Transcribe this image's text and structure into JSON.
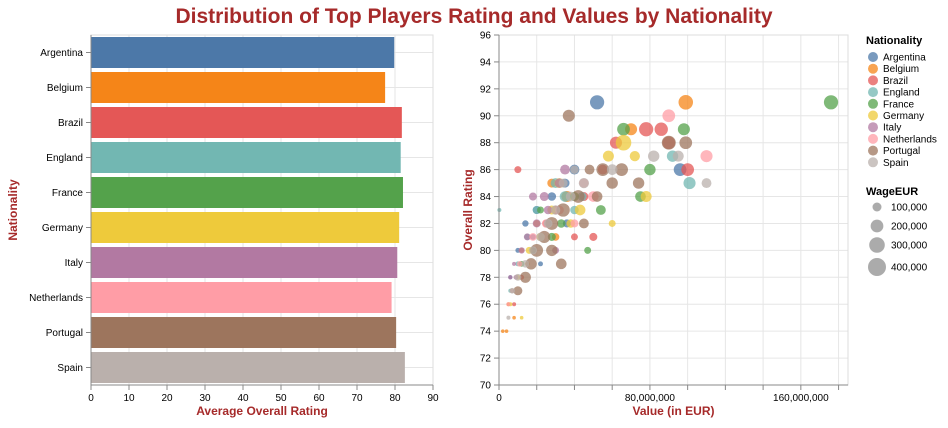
{
  "title": "Distribution of Top Players Rating and Values by Nationality",
  "title_color": "#a62a2a",
  "axis_title_color": "#a62a2a",
  "legend": {
    "color_title": "Nationality",
    "size_title": "WageEUR",
    "size_labels": [
      "100,000",
      "200,000",
      "300,000",
      "400,000"
    ],
    "size_values": [
      100000,
      200000,
      300000,
      400000
    ],
    "position": "right"
  },
  "chart_data": [
    {
      "type": "bar",
      "orientation": "horizontal",
      "xlabel": "Average Overall Rating",
      "ylabel": "Nationality",
      "xlim": [
        0,
        90
      ],
      "xticks": [
        "0",
        "10",
        "20",
        "30",
        "40",
        "50",
        "60",
        "70",
        "80",
        "90"
      ],
      "grid": true,
      "categories": [
        "Argentina",
        "Belgium",
        "Brazil",
        "England",
        "France",
        "Germany",
        "Italy",
        "Netherlands",
        "Portugal",
        "Spain"
      ],
      "values": [
        79.8,
        77.4,
        81.8,
        81.5,
        82.1,
        81.1,
        80.6,
        79.1,
        80.3,
        82.6
      ],
      "colors": [
        "#4c78a8",
        "#f58518",
        "#e45756",
        "#72b7b2",
        "#54a24b",
        "#eeca3b",
        "#b279a2",
        "#ff9da6",
        "#9d755d",
        "#bab0ac"
      ]
    },
    {
      "type": "scatter",
      "xlabel": "Value (in EUR)",
      "ylabel": "Overall Rating",
      "xlim": [
        0,
        185000000
      ],
      "ylim": [
        70,
        96
      ],
      "xticks": [
        "0",
        "80,000,000",
        "160,000,000"
      ],
      "yticks": [
        "70",
        "72",
        "74",
        "76",
        "78",
        "80",
        "82",
        "84",
        "86",
        "88",
        "90",
        "92",
        "94",
        "96"
      ],
      "grid": true,
      "series": [
        {
          "name": "Argentina",
          "color": "#4c78a8",
          "points": [
            [
              52000000,
              91,
              250000
            ],
            [
              96000000,
              86,
              200000
            ],
            [
              40000000,
              86,
              120000
            ],
            [
              35000000,
              85,
              100000
            ],
            [
              20000000,
              83,
              80000
            ],
            [
              28000000,
              84,
              90000
            ],
            [
              14000000,
              82,
              50000
            ],
            [
              18000000,
              81,
              40000
            ],
            [
              10000000,
              80,
              30000
            ],
            [
              6000000,
              78,
              20000
            ],
            [
              36000000,
              82,
              80000
            ],
            [
              22000000,
              79,
              30000
            ]
          ]
        },
        {
          "name": "Belgium",
          "color": "#f58518",
          "points": [
            [
              99000000,
              91,
              260000
            ],
            [
              70000000,
              89,
              180000
            ],
            [
              36000000,
              84,
              150000
            ],
            [
              28000000,
              85,
              100000
            ],
            [
              20000000,
              82,
              60000
            ],
            [
              12000000,
              80,
              30000
            ],
            [
              5000000,
              76,
              20000
            ],
            [
              8000000,
              75,
              15000
            ],
            [
              2000000,
              74,
              15000
            ],
            [
              4000000,
              74,
              10000
            ],
            [
              15000000,
              79,
              25000
            ],
            [
              30000000,
              81,
              70000
            ]
          ]
        },
        {
          "name": "Brazil",
          "color": "#e45756",
          "points": [
            [
              78000000,
              89,
              250000
            ],
            [
              86000000,
              89,
              220000
            ],
            [
              90000000,
              88,
              200000
            ],
            [
              62000000,
              88,
              180000
            ],
            [
              100000000,
              86,
              200000
            ],
            [
              10000000,
              86,
              60000
            ],
            [
              55000000,
              86,
              120000
            ],
            [
              45000000,
              84,
              100000
            ],
            [
              30000000,
              83,
              90000
            ],
            [
              25000000,
              82,
              70000
            ],
            [
              40000000,
              81,
              60000
            ],
            [
              18000000,
              80,
              40000
            ],
            [
              50000000,
              81,
              80000
            ],
            [
              12000000,
              78,
              30000
            ],
            [
              8000000,
              76,
              20000
            ]
          ]
        },
        {
          "name": "England",
          "color": "#72b7b2",
          "points": [
            [
              101000000,
              85,
              180000
            ],
            [
              92000000,
              87,
              160000
            ],
            [
              35000000,
              84,
              140000
            ],
            [
              30000000,
              85,
              120000
            ],
            [
              44000000,
              84,
              100000
            ],
            [
              20000000,
              83,
              80000
            ],
            [
              26000000,
              82,
              60000
            ],
            [
              15000000,
              81,
              50000
            ],
            [
              10000000,
              79,
              30000
            ],
            [
              200000,
              83,
              20000
            ],
            [
              40000000,
              83,
              90000
            ],
            [
              6000000,
              77,
              20000
            ]
          ]
        },
        {
          "name": "France",
          "color": "#54a24b",
          "points": [
            [
              176000000,
              91,
              250000
            ],
            [
              66000000,
              89,
              200000
            ],
            [
              98000000,
              89,
              180000
            ],
            [
              80000000,
              86,
              160000
            ],
            [
              75000000,
              84,
              140000
            ],
            [
              54000000,
              83,
              120000
            ],
            [
              40000000,
              84,
              100000
            ],
            [
              33000000,
              82,
              90000
            ],
            [
              28000000,
              81,
              80000
            ],
            [
              22000000,
              83,
              60000
            ],
            [
              18000000,
              80,
              50000
            ],
            [
              47000000,
              80,
              60000
            ],
            [
              12000000,
              79,
              40000
            ],
            [
              7000000,
              77,
              25000
            ]
          ]
        },
        {
          "name": "Germany",
          "color": "#eeca3b",
          "points": [
            [
              66000000,
              88,
              300000
            ],
            [
              58000000,
              87,
              150000
            ],
            [
              72000000,
              87,
              130000
            ],
            [
              78000000,
              84,
              150000
            ],
            [
              43000000,
              83,
              140000
            ],
            [
              32000000,
              85,
              120000
            ],
            [
              28000000,
              83,
              100000
            ],
            [
              38000000,
              82,
              90000
            ],
            [
              22000000,
              81,
              80000
            ],
            [
              16000000,
              80,
              60000
            ],
            [
              60000000,
              82,
              60000
            ],
            [
              10000000,
              78,
              30000
            ],
            [
              6000000,
              76,
              20000
            ],
            [
              12000000,
              75,
              15000
            ]
          ]
        },
        {
          "name": "Italy",
          "color": "#b279a2",
          "points": [
            [
              35000000,
              86,
              120000
            ],
            [
              32000000,
              85,
              110000
            ],
            [
              24000000,
              84,
              100000
            ],
            [
              26000000,
              83,
              90000
            ],
            [
              20000000,
              82,
              80000
            ],
            [
              15000000,
              81,
              60000
            ],
            [
              12000000,
              80,
              50000
            ],
            [
              30000000,
              80,
              60000
            ],
            [
              9000000,
              78,
              30000
            ],
            [
              6000000,
              78,
              25000
            ],
            [
              18000000,
              84,
              80000
            ],
            [
              8000000,
              79,
              20000
            ]
          ]
        },
        {
          "name": "Netherlands",
          "color": "#ff9da6",
          "points": [
            [
              90000000,
              90,
              200000
            ],
            [
              110000000,
              87,
              180000
            ],
            [
              50000000,
              84,
              140000
            ],
            [
              45000000,
              85,
              110000
            ],
            [
              32000000,
              83,
              100000
            ],
            [
              25000000,
              82,
              90000
            ],
            [
              18000000,
              81,
              70000
            ],
            [
              11000000,
              79,
              40000
            ],
            [
              7000000,
              77,
              25000
            ],
            [
              5000000,
              76,
              20000
            ],
            [
              40000000,
              82,
              80000
            ]
          ]
        },
        {
          "name": "Portugal",
          "color": "#9d755d",
          "points": [
            [
              37000000,
              90,
              180000
            ],
            [
              90000000,
              88,
              240000
            ],
            [
              99000000,
              88,
              200000
            ],
            [
              74000000,
              85,
              160000
            ],
            [
              65000000,
              86,
              200000
            ],
            [
              55000000,
              86,
              200000
            ],
            [
              42000000,
              84,
              200000
            ],
            [
              34000000,
              83,
              220000
            ],
            [
              28000000,
              82,
              200000
            ],
            [
              24000000,
              81,
              180000
            ],
            [
              20000000,
              80,
              200000
            ],
            [
              17000000,
              79,
              160000
            ],
            [
              14000000,
              78,
              150000
            ],
            [
              10000000,
              77,
              100000
            ],
            [
              33000000,
              79,
              140000
            ],
            [
              28000000,
              80,
              160000
            ],
            [
              45000000,
              82,
              120000
            ],
            [
              52000000,
              84,
              140000
            ],
            [
              60000000,
              85,
              160000
            ],
            [
              48000000,
              86,
              120000
            ]
          ]
        },
        {
          "name": "Spain",
          "color": "#bab0ac",
          "points": [
            [
              95000000,
              87,
              150000
            ],
            [
              110000000,
              85,
              120000
            ],
            [
              60000000,
              86,
              140000
            ],
            [
              82000000,
              87,
              160000
            ],
            [
              45000000,
              85,
              130000
            ],
            [
              38000000,
              84,
              120000
            ],
            [
              30000000,
              83,
              110000
            ],
            [
              26000000,
              82,
              100000
            ],
            [
              22000000,
              81,
              90000
            ],
            [
              18000000,
              80,
              80000
            ],
            [
              14000000,
              79,
              70000
            ],
            [
              10000000,
              78,
              60000
            ],
            [
              7000000,
              77,
              40000
            ],
            [
              5000000,
              75,
              20000
            ],
            [
              40000000,
              86,
              90000
            ],
            [
              34000000,
              85,
              100000
            ]
          ]
        }
      ]
    }
  ]
}
